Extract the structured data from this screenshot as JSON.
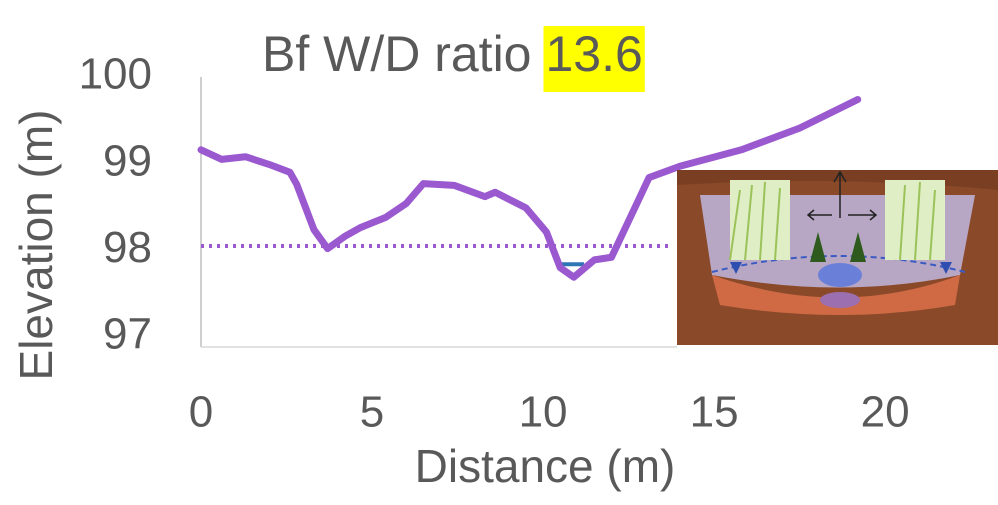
{
  "chart_data": {
    "type": "line",
    "title": "Bf W/D ratio",
    "title_highlight": "13.6",
    "x_label": "Distance (m)",
    "y_label": "Elevation (m)",
    "x": [
      0,
      0.6,
      1.3,
      2.0,
      2.6,
      2.8,
      3.3,
      3.7,
      4.2,
      4.65,
      5.4,
      6.0,
      6.5,
      7.4,
      8.3,
      8.6,
      9.5,
      10.1,
      10.5,
      10.9,
      11.5,
      12.0,
      13.1,
      14.0,
      15.8,
      17.5,
      19.2
    ],
    "values": [
      99.16,
      99.05,
      99.08,
      98.99,
      98.9,
      98.76,
      98.24,
      98.02,
      98.16,
      98.26,
      98.38,
      98.54,
      98.77,
      98.75,
      98.62,
      98.67,
      98.49,
      98.21,
      97.8,
      97.69,
      97.89,
      97.92,
      98.84,
      98.97,
      99.16,
      99.41,
      99.74
    ],
    "color": "#9b59d0",
    "reference_lines": [
      {
        "y": 98.05,
        "x": [
          0,
          13.7
        ],
        "color": "#9b59d0",
        "style": "dotted"
      },
      {
        "y": 97.84,
        "x": [
          10.5,
          11.2
        ],
        "color": "#2e75b6",
        "style": "solid"
      }
    ],
    "xlim": [
      0,
      23.3
    ],
    "xticks": [
      0,
      5,
      10,
      15,
      20
    ],
    "ylim": [
      97,
      100
    ],
    "yticks": [
      97,
      98,
      99,
      100
    ]
  }
}
